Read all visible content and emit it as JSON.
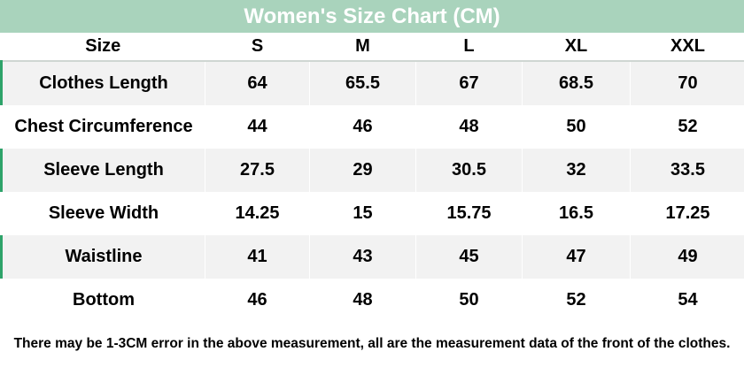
{
  "title": "Women's Size Chart (CM)",
  "columns": [
    "Size",
    "S",
    "M",
    "L",
    "XL",
    "XXL"
  ],
  "rows": [
    {
      "label": "Clothes Length",
      "values": [
        "64",
        "65.5",
        "67",
        "68.5",
        "70"
      ]
    },
    {
      "label": "Chest Circumference",
      "values": [
        "44",
        "46",
        "48",
        "50",
        "52"
      ]
    },
    {
      "label": "Sleeve Length",
      "values": [
        "27.5",
        "29",
        "30.5",
        "32",
        "33.5"
      ]
    },
    {
      "label": "Sleeve Width",
      "values": [
        "14.25",
        "15",
        "15.75",
        "16.5",
        "17.25"
      ]
    },
    {
      "label": "Waistline",
      "values": [
        "41",
        "43",
        "45",
        "47",
        "49"
      ]
    },
    {
      "label": "Bottom",
      "values": [
        "46",
        "48",
        "50",
        "52",
        "54"
      ]
    }
  ],
  "footnote": "There may be 1-3CM error in the above measurement, all are the measurement data of the front of the clothes.",
  "colors": {
    "title_bar": "#a9d3bc",
    "title_text": "#ffffff",
    "row_shade": "#f2f2f2",
    "accent": "#2ea36a"
  }
}
